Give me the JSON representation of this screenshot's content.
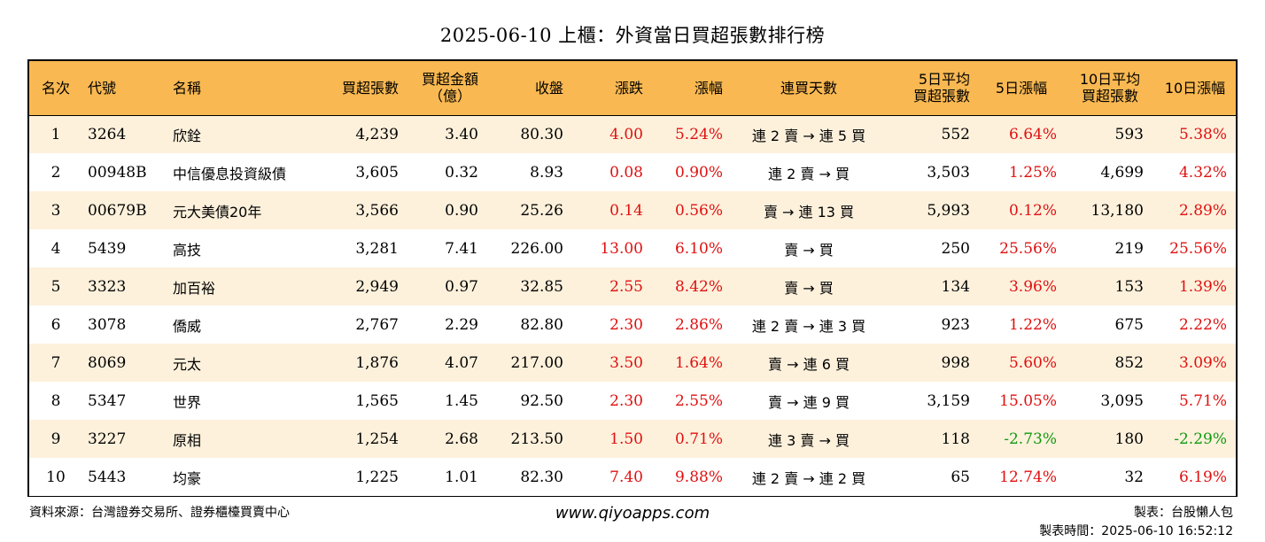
{
  "title": "2025-06-10 上櫃：外資當日買超張數排行榜",
  "columns": [
    "名次",
    "代號",
    "名稱",
    "買超張數",
    "買超金額\n（億）",
    "收盤",
    "漲跌",
    "漲幅",
    "連買天數",
    "5日平均\n買超張數",
    "5日漲幅",
    "10日平均\n買超張數",
    "10日漲幅"
  ],
  "rows": [
    {
      "rank": "1",
      "code": "3264",
      "name": "欣銓",
      "shares": "4,239",
      "amount": "3.40",
      "close": "80.30",
      "change": "4.00",
      "pct": "5.24%",
      "streak": "連 2 賣 → 連 5 買",
      "avg5": "552",
      "pct5": "6.64%",
      "pct5_dir": "up",
      "avg10": "593",
      "pct10": "5.38%",
      "pct10_dir": "up"
    },
    {
      "rank": "2",
      "code": "00948B",
      "name": "中信優息投資級債",
      "shares": "3,605",
      "amount": "0.32",
      "close": "8.93",
      "change": "0.08",
      "pct": "0.90%",
      "streak": "連 2 賣 → 買",
      "avg5": "3,503",
      "pct5": "1.25%",
      "pct5_dir": "up",
      "avg10": "4,699",
      "pct10": "4.32%",
      "pct10_dir": "up"
    },
    {
      "rank": "3",
      "code": "00679B",
      "name": "元大美債20年",
      "shares": "3,566",
      "amount": "0.90",
      "close": "25.26",
      "change": "0.14",
      "pct": "0.56%",
      "streak": "賣 → 連 13 買",
      "avg5": "5,993",
      "pct5": "0.12%",
      "pct5_dir": "up",
      "avg10": "13,180",
      "pct10": "2.89%",
      "pct10_dir": "up"
    },
    {
      "rank": "4",
      "code": "5439",
      "name": "高技",
      "shares": "3,281",
      "amount": "7.41",
      "close": "226.00",
      "change": "13.00",
      "pct": "6.10%",
      "streak": "賣 → 買",
      "avg5": "250",
      "pct5": "25.56%",
      "pct5_dir": "up",
      "avg10": "219",
      "pct10": "25.56%",
      "pct10_dir": "up"
    },
    {
      "rank": "5",
      "code": "3323",
      "name": "加百裕",
      "shares": "2,949",
      "amount": "0.97",
      "close": "32.85",
      "change": "2.55",
      "pct": "8.42%",
      "streak": "賣 → 買",
      "avg5": "134",
      "pct5": "3.96%",
      "pct5_dir": "up",
      "avg10": "153",
      "pct10": "1.39%",
      "pct10_dir": "up"
    },
    {
      "rank": "6",
      "code": "3078",
      "name": "僑威",
      "shares": "2,767",
      "amount": "2.29",
      "close": "82.80",
      "change": "2.30",
      "pct": "2.86%",
      "streak": "連 2 賣 → 連 3 買",
      "avg5": "923",
      "pct5": "1.22%",
      "pct5_dir": "up",
      "avg10": "675",
      "pct10": "2.22%",
      "pct10_dir": "up"
    },
    {
      "rank": "7",
      "code": "8069",
      "name": "元太",
      "shares": "1,876",
      "amount": "4.07",
      "close": "217.00",
      "change": "3.50",
      "pct": "1.64%",
      "streak": "賣 → 連 6 買",
      "avg5": "998",
      "pct5": "5.60%",
      "pct5_dir": "up",
      "avg10": "852",
      "pct10": "3.09%",
      "pct10_dir": "up"
    },
    {
      "rank": "8",
      "code": "5347",
      "name": "世界",
      "shares": "1,565",
      "amount": "1.45",
      "close": "92.50",
      "change": "2.30",
      "pct": "2.55%",
      "streak": "賣 → 連 9 買",
      "avg5": "3,159",
      "pct5": "15.05%",
      "pct5_dir": "up",
      "avg10": "3,095",
      "pct10": "5.71%",
      "pct10_dir": "up"
    },
    {
      "rank": "9",
      "code": "3227",
      "name": "原相",
      "shares": "1,254",
      "amount": "2.68",
      "close": "213.50",
      "change": "1.50",
      "pct": "0.71%",
      "streak": "連 3 賣 → 買",
      "avg5": "118",
      "pct5": "-2.73%",
      "pct5_dir": "down",
      "avg10": "180",
      "pct10": "-2.29%",
      "pct10_dir": "down"
    },
    {
      "rank": "10",
      "code": "5443",
      "name": "均豪",
      "shares": "1,225",
      "amount": "1.01",
      "close": "82.30",
      "change": "7.40",
      "pct": "9.88%",
      "streak": "連 2 賣 → 連 2 買",
      "avg5": "65",
      "pct5": "12.74%",
      "pct5_dir": "up",
      "avg10": "32",
      "pct10": "6.19%",
      "pct10_dir": "up"
    }
  ],
  "footer": {
    "source": "資料來源：台灣證券交易所、證券櫃檯買賣中心",
    "website": "www.qiyoapps.com",
    "maker": "製表：台股懶人包",
    "made_time": "製表時間：2025-06-10 16:52:12"
  },
  "colors": {
    "header_bg": "#f9b851",
    "stripe": "#fdf1dc",
    "up": "#e01010",
    "down": "#119a11"
  }
}
